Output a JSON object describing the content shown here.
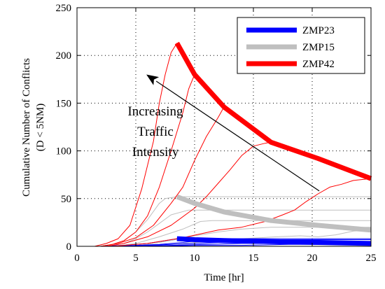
{
  "chart_data": {
    "type": "line",
    "xlabel": "Time [hr]",
    "ylabel": [
      "Cumulative Number of Conflicts",
      "(D < 5NM)"
    ],
    "xlim": [
      0,
      25
    ],
    "ylim": [
      0,
      250
    ],
    "xticks": [
      0,
      5,
      10,
      15,
      20,
      25
    ],
    "yticks": [
      0,
      50,
      100,
      150,
      200,
      250
    ],
    "grid": true,
    "legend_position": "top-right",
    "annotation": [
      "Increasing",
      "Traffic",
      "Intensity"
    ],
    "annotation_arrow": {
      "from": [
        20.6,
        58
      ],
      "to": [
        5.9,
        180
      ]
    },
    "series": [
      {
        "name": "ZMP23",
        "color": "#0000ff",
        "curves": [
          [
            [
              0,
              0
            ],
            [
              2,
              0
            ],
            [
              4,
              1
            ],
            [
              6,
              3
            ],
            [
              7,
              5
            ],
            [
              8,
              7
            ],
            [
              8.5,
              8
            ],
            [
              25,
              8
            ]
          ],
          [
            [
              0,
              0
            ],
            [
              3,
              0
            ],
            [
              5,
              1
            ],
            [
              7,
              2
            ],
            [
              9,
              4
            ],
            [
              10.5,
              6
            ],
            [
              11.5,
              7
            ],
            [
              25,
              7
            ]
          ],
          [
            [
              0,
              0
            ],
            [
              4,
              0
            ],
            [
              6,
              1
            ],
            [
              8,
              2
            ],
            [
              10,
              3
            ],
            [
              12,
              4
            ],
            [
              14,
              5
            ],
            [
              25,
              5
            ]
          ],
          [
            [
              0,
              0
            ],
            [
              5,
              0
            ],
            [
              8,
              1
            ],
            [
              11,
              2
            ],
            [
              14,
              3
            ],
            [
              16.5,
              3
            ],
            [
              25,
              3
            ]
          ],
          [
            [
              0,
              0
            ],
            [
              6,
              0
            ],
            [
              10,
              1
            ],
            [
              14,
              1
            ],
            [
              18,
              2
            ],
            [
              21,
              2
            ],
            [
              25,
              2
            ]
          ]
        ],
        "envelope": [
          [
            8.5,
            8
          ],
          [
            10,
            7
          ],
          [
            12.5,
            6
          ],
          [
            16.5,
            5
          ],
          [
            25,
            3
          ]
        ]
      },
      {
        "name": "ZMP15",
        "color": "#bfbfbf",
        "curves": [
          [
            [
              0,
              0
            ],
            [
              2,
              0
            ],
            [
              3,
              2
            ],
            [
              4,
              6
            ],
            [
              5,
              15
            ],
            [
              6,
              28
            ],
            [
              7,
              45
            ],
            [
              7.5,
              50
            ],
            [
              8.5,
              52
            ],
            [
              25,
              52
            ]
          ],
          [
            [
              0,
              0
            ],
            [
              2.5,
              0
            ],
            [
              4,
              3
            ],
            [
              5,
              8
            ],
            [
              6,
              15
            ],
            [
              7,
              24
            ],
            [
              8,
              33
            ],
            [
              9.5,
              38
            ],
            [
              25,
              38
            ]
          ],
          [
            [
              0,
              0
            ],
            [
              3,
              0
            ],
            [
              5,
              3
            ],
            [
              7,
              10
            ],
            [
              9,
              18
            ],
            [
              10.5,
              26
            ],
            [
              11.5,
              27
            ],
            [
              25,
              27
            ]
          ],
          [
            [
              0,
              0
            ],
            [
              4,
              0
            ],
            [
              6,
              2
            ],
            [
              8,
              6
            ],
            [
              10,
              11
            ],
            [
              12,
              15
            ],
            [
              14,
              18
            ],
            [
              16.5,
              20
            ],
            [
              25,
              20
            ]
          ],
          [
            [
              0,
              0
            ],
            [
              5,
              0
            ],
            [
              8,
              2
            ],
            [
              11,
              5
            ],
            [
              14,
              8
            ],
            [
              17,
              10
            ],
            [
              19,
              11
            ],
            [
              20.5,
              10
            ],
            [
              22,
              12
            ],
            [
              23.5,
              16
            ],
            [
              25,
              17
            ]
          ]
        ],
        "envelope": [
          [
            8.5,
            52
          ],
          [
            10,
            45
          ],
          [
            12.5,
            36
          ],
          [
            16.5,
            27
          ],
          [
            20.5,
            22
          ],
          [
            25,
            17
          ]
        ]
      },
      {
        "name": "ZMP42",
        "color": "#ff0000",
        "curves": [
          [
            [
              0,
              0
            ],
            [
              1.5,
              0
            ],
            [
              2.5,
              3
            ],
            [
              3.5,
              8
            ],
            [
              4.5,
              22
            ],
            [
              5.5,
              60
            ],
            [
              6.5,
              110
            ],
            [
              7,
              150
            ],
            [
              7.5,
              180
            ],
            [
              8,
              203
            ],
            [
              8.5,
              213
            ]
          ],
          [
            [
              0,
              0
            ],
            [
              2,
              0
            ],
            [
              3,
              2
            ],
            [
              4,
              6
            ],
            [
              5,
              15
            ],
            [
              6,
              32
            ],
            [
              7,
              62
            ],
            [
              8,
              100
            ],
            [
              9,
              140
            ],
            [
              9.5,
              165
            ],
            [
              10,
              180
            ]
          ],
          [
            [
              0,
              0
            ],
            [
              2,
              0
            ],
            [
              3.5,
              3
            ],
            [
              5,
              9
            ],
            [
              6.5,
              22
            ],
            [
              8,
              45
            ],
            [
              9,
              62
            ],
            [
              10,
              90
            ],
            [
              11,
              115
            ],
            [
              12,
              135
            ],
            [
              12.5,
              146
            ]
          ],
          [
            [
              0,
              0
            ],
            [
              2.5,
              0
            ],
            [
              4,
              3
            ],
            [
              6,
              10
            ],
            [
              8,
              22
            ],
            [
              10,
              40
            ],
            [
              11,
              52
            ],
            [
              12,
              66
            ],
            [
              13,
              80
            ],
            [
              14,
              95
            ],
            [
              15,
              105
            ],
            [
              16,
              108
            ],
            [
              16.5,
              109
            ]
          ],
          [
            [
              0,
              0
            ],
            [
              3,
              0
            ],
            [
              6,
              3
            ],
            [
              9,
              9
            ],
            [
              12,
              17
            ],
            [
              14,
              20
            ],
            [
              16,
              26
            ],
            [
              17.5,
              33
            ],
            [
              18.5,
              38
            ],
            [
              19.5,
              47
            ],
            [
              20.5,
              55
            ],
            [
              21.5,
              62
            ],
            [
              22.5,
              65
            ],
            [
              23.5,
              69
            ],
            [
              25,
              71
            ]
          ]
        ],
        "envelope": [
          [
            8.5,
            213
          ],
          [
            10,
            180
          ],
          [
            12.5,
            146
          ],
          [
            16.5,
            109
          ],
          [
            20.5,
            92
          ],
          [
            25,
            71
          ]
        ]
      }
    ]
  }
}
